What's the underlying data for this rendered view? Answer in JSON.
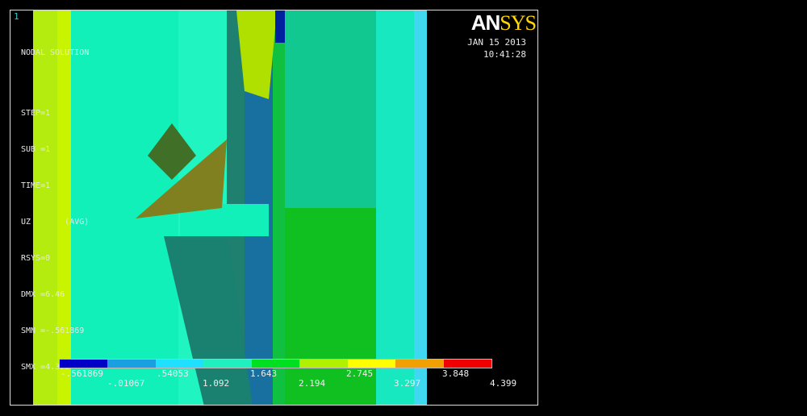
{
  "window_number": "1",
  "logo": {
    "part1": "AN",
    "part2": "SYS"
  },
  "date": "JAN 15 2013",
  "time": "10:41:28",
  "info": [
    "NODAL SOLUTION",
    "",
    "STEP=1",
    "SUB =1",
    "TIME=1",
    "UZ       (AVG)",
    "RSYS=0",
    "DMX =6.46",
    "SMN =-.561869",
    "SMX =4.399"
  ],
  "legend": {
    "colors": [
      "#0000c8",
      "#1a9fe0",
      "#20e0ff",
      "#20f0c0",
      "#00e020",
      "#b0f000",
      "#ffff00",
      "#f0a000",
      "#f00000"
    ],
    "labels_top": [
      "-.561869",
      ".54053",
      "1.643",
      "2.745",
      "3.848"
    ],
    "labels_bottom": [
      "-.01067",
      "1.092",
      "2.194",
      "3.297",
      "4.399"
    ]
  }
}
